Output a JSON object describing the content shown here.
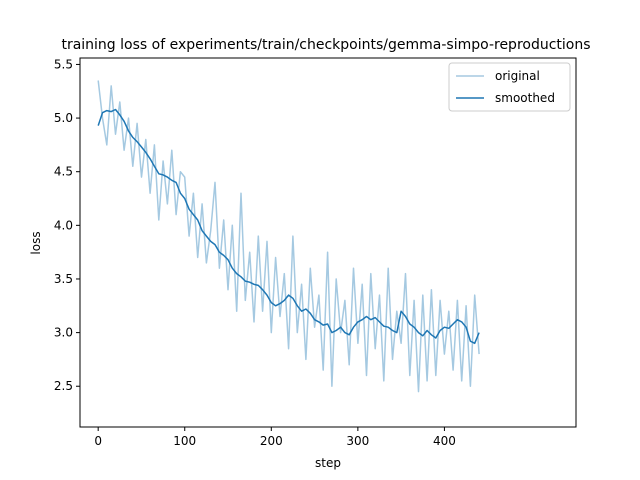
{
  "chart_data": {
    "type": "line",
    "title": "training loss of experiments/train/checkpoints/gemma-simpo-reproductions",
    "xlabel": "step",
    "ylabel": "loss",
    "xlim": [
      -21,
      552
    ],
    "ylim": [
      2.12,
      5.56
    ],
    "xticks": [
      0,
      100,
      200,
      300,
      400
    ],
    "yticks": [
      2.5,
      3.0,
      3.5,
      4.0,
      4.5,
      5.0,
      5.5
    ],
    "grid": false,
    "legend_position": "top-right",
    "series": [
      {
        "name": "original",
        "color": "#1f77b4",
        "opacity": 0.4,
        "x": [
          0,
          5,
          10,
          15,
          20,
          25,
          30,
          35,
          40,
          45,
          50,
          55,
          60,
          65,
          70,
          75,
          80,
          85,
          90,
          95,
          100,
          105,
          110,
          115,
          120,
          125,
          130,
          135,
          140,
          145,
          150,
          155,
          160,
          165,
          170,
          175,
          180,
          185,
          190,
          195,
          200,
          205,
          210,
          215,
          220,
          225,
          230,
          235,
          240,
          245,
          250,
          255,
          260,
          265,
          270,
          275,
          280,
          285,
          290,
          295,
          300,
          305,
          310,
          315,
          320,
          325,
          330,
          335,
          340,
          345,
          350,
          355,
          360,
          365,
          370,
          375,
          380,
          385,
          390,
          395,
          400,
          405,
          410,
          415,
          420,
          425,
          430,
          435,
          440
        ],
        "y": [
          5.35,
          5.0,
          4.75,
          5.3,
          4.85,
          5.15,
          4.7,
          5.0,
          4.55,
          4.95,
          4.45,
          4.8,
          4.3,
          4.75,
          4.05,
          4.6,
          4.2,
          4.7,
          4.1,
          4.5,
          4.45,
          3.9,
          4.3,
          3.7,
          4.2,
          3.65,
          3.95,
          4.4,
          3.6,
          4.05,
          3.4,
          4.0,
          3.2,
          4.3,
          3.3,
          3.75,
          3.1,
          3.9,
          3.2,
          3.85,
          3.0,
          3.7,
          3.15,
          3.55,
          2.85,
          3.9,
          3.0,
          3.45,
          2.75,
          3.6,
          3.05,
          3.35,
          2.65,
          3.75,
          2.5,
          3.5,
          3.0,
          3.3,
          2.7,
          3.6,
          2.9,
          3.45,
          2.6,
          3.55,
          2.85,
          3.35,
          2.55,
          3.6,
          2.75,
          3.2,
          2.9,
          3.55,
          2.6,
          3.3,
          2.45,
          3.35,
          2.55,
          3.4,
          2.6,
          3.3,
          2.8,
          3.2,
          2.65,
          3.3,
          2.55,
          3.25,
          2.5,
          3.35,
          2.8
        ]
      },
      {
        "name": "smoothed",
        "color": "#1f77b4",
        "opacity": 1.0,
        "x": [
          0,
          5,
          10,
          15,
          20,
          25,
          30,
          35,
          40,
          45,
          50,
          55,
          60,
          65,
          70,
          75,
          80,
          85,
          90,
          95,
          100,
          105,
          110,
          115,
          120,
          125,
          130,
          135,
          140,
          145,
          150,
          155,
          160,
          165,
          170,
          175,
          180,
          185,
          190,
          195,
          200,
          205,
          210,
          215,
          220,
          225,
          230,
          235,
          240,
          245,
          250,
          255,
          260,
          265,
          270,
          275,
          280,
          285,
          290,
          295,
          300,
          305,
          310,
          315,
          320,
          325,
          330,
          335,
          340,
          345,
          350,
          355,
          360,
          365,
          370,
          375,
          380,
          385,
          390,
          395,
          400,
          405,
          410,
          415,
          420,
          425,
          430,
          435,
          440
        ],
        "y": [
          4.93,
          5.05,
          5.07,
          5.06,
          5.08,
          5.03,
          4.97,
          4.88,
          4.82,
          4.78,
          4.73,
          4.68,
          4.62,
          4.55,
          4.48,
          4.47,
          4.45,
          4.42,
          4.4,
          4.3,
          4.25,
          4.15,
          4.1,
          4.05,
          3.95,
          3.9,
          3.85,
          3.82,
          3.75,
          3.72,
          3.68,
          3.6,
          3.55,
          3.52,
          3.48,
          3.47,
          3.45,
          3.44,
          3.4,
          3.35,
          3.28,
          3.25,
          3.27,
          3.3,
          3.35,
          3.32,
          3.25,
          3.2,
          3.22,
          3.18,
          3.12,
          3.1,
          3.07,
          3.08,
          3.0,
          3.02,
          3.05,
          3.0,
          2.98,
          3.05,
          3.1,
          3.12,
          3.15,
          3.12,
          3.14,
          3.1,
          3.06,
          3.05,
          3.02,
          3.0,
          3.2,
          3.15,
          3.08,
          3.05,
          3.0,
          2.97,
          3.02,
          2.98,
          2.95,
          3.02,
          3.05,
          3.04,
          3.08,
          3.12,
          3.1,
          3.05,
          2.92,
          2.9,
          3.0
        ]
      }
    ]
  }
}
